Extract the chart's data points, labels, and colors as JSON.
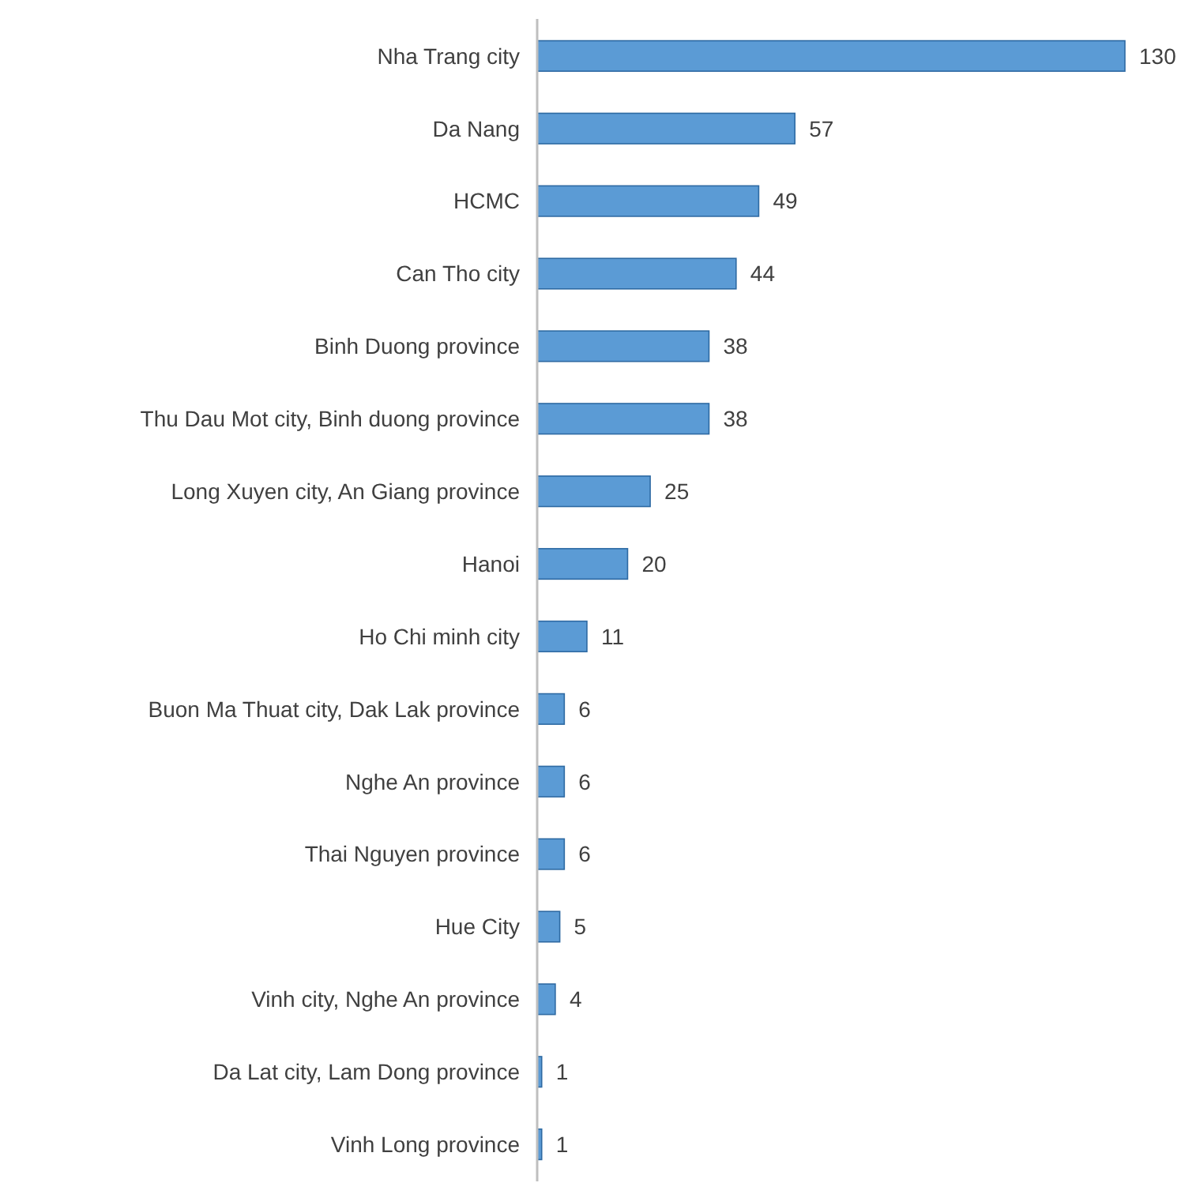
{
  "chart_data": {
    "type": "bar",
    "orientation": "horizontal",
    "data_labels": true,
    "color": "#5b9bd5",
    "categories": [
      "Nha Trang city",
      "Da Nang",
      "HCMC",
      "Can Tho city",
      "Binh Duong province",
      "Thu Dau Mot city, Binh duong province",
      "Long Xuyen city, An Giang province",
      "Hanoi",
      "Ho Chi minh city",
      "Buon Ma Thuat city, Dak Lak province",
      "Nghe An province",
      "Thai Nguyen province",
      "Hue City",
      "Vinh city, Nghe An province",
      "Da Lat city, Lam Dong province",
      "Vinh Long province"
    ],
    "values": [
      130,
      57,
      49,
      44,
      38,
      38,
      25,
      20,
      11,
      6,
      6,
      6,
      5,
      4,
      1,
      1
    ]
  }
}
